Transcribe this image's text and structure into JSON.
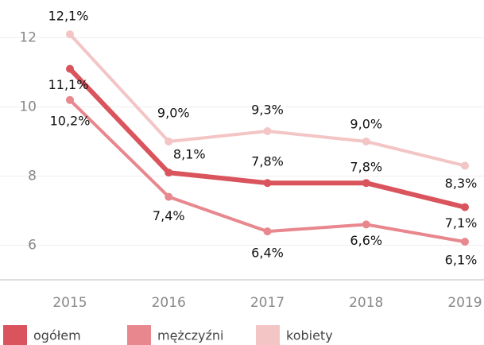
{
  "chart_data": {
    "type": "line",
    "categories": [
      "2015",
      "2016",
      "2017",
      "2018",
      "2019"
    ],
    "series": [
      {
        "name": "ogółem",
        "color": "#d9545c",
        "values": [
          11.1,
          8.1,
          7.8,
          7.8,
          7.1
        ],
        "value_labels": [
          "11,1%",
          "8,1%",
          "7,8%",
          "7,8%",
          "7,1%"
        ]
      },
      {
        "name": "mężczyźni",
        "color": "#e8878d",
        "values": [
          10.2,
          7.4,
          6.4,
          6.6,
          6.1
        ],
        "value_labels": [
          "10,2%",
          "7,4%",
          "6,4%",
          "6,6%",
          "6,1%"
        ]
      },
      {
        "name": "kobiety",
        "color": "#f3c5c5",
        "values": [
          12.1,
          9.0,
          9.3,
          9.0,
          8.3
        ],
        "value_labels": [
          "12,1%",
          "9,0%",
          "9,3%",
          "9,0%",
          "8,3%"
        ]
      }
    ],
    "ylim": [
      5,
      13
    ],
    "yticks": [
      6,
      8,
      10,
      12
    ],
    "grid": true
  }
}
